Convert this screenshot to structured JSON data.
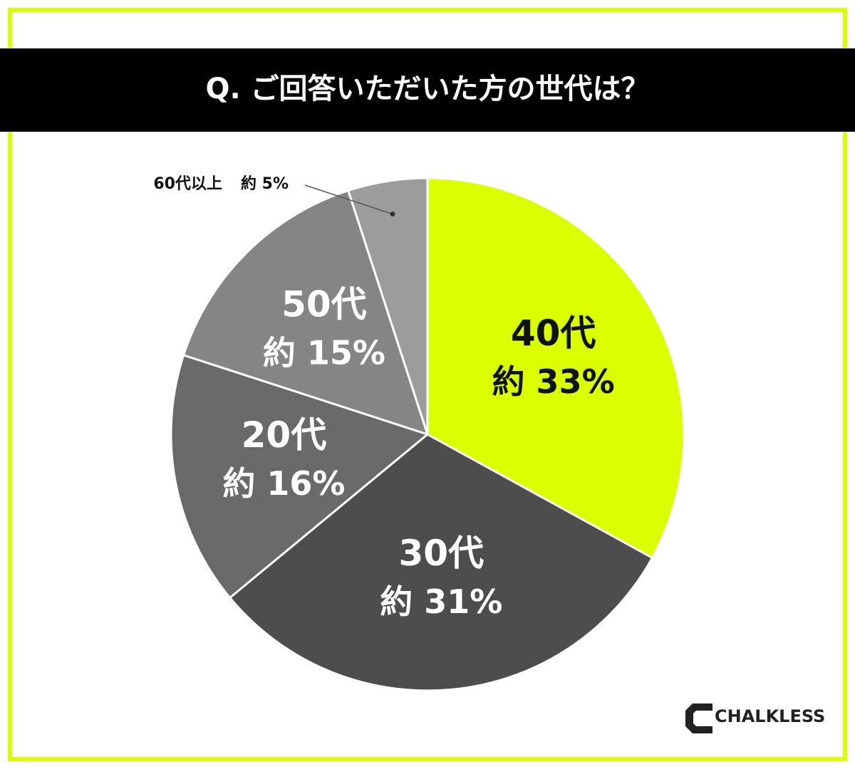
{
  "chart_data": {
    "type": "pie",
    "title": "Q. ご回答いただいた方の世代は？",
    "categories": [
      "40代",
      "30代",
      "20代",
      "50代",
      "60代以上"
    ],
    "values": [
      33,
      31,
      16,
      15,
      5
    ],
    "value_labels": [
      "約 33%",
      "約 31%",
      "約 16%",
      "約 15%",
      "約 5%"
    ],
    "colors": [
      "#d9ff00",
      "#4d4d4d",
      "#696969",
      "#858585",
      "#9c9c9c"
    ],
    "brand": "CHALKLESS"
  }
}
